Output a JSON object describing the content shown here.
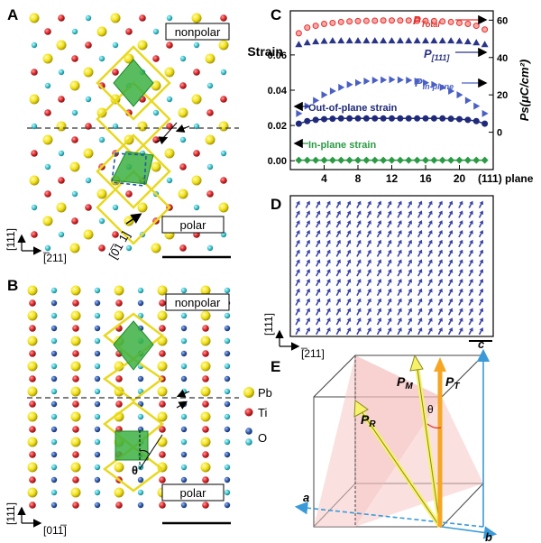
{
  "panels": {
    "A": {
      "letter": "A",
      "nonpolar": "nonpolar",
      "polar": "polar",
      "axis_v": "[111]",
      "axis_h": "[̅211]",
      "direction": "[0̅1 1]"
    },
    "B": {
      "letter": "B",
      "nonpolar": "nonpolar",
      "polar": "polar",
      "axis_v": "[111]",
      "axis_h": "[011̅]",
      "theta": "θ"
    },
    "C": {
      "letter": "C",
      "ylabel_left": "Strain",
      "ylabel_right": "Ps(μC/cm²)",
      "xlabel_suffix": "(111) plane",
      "labels": {
        "ptotal": "P",
        "ptotal_sub": "Total",
        "p111": "P",
        "p111_sub": "[111]",
        "pinplane": "P",
        "pinplane_sub": "In-plane",
        "outofplane": "Out-of-plane strain",
        "inplane": "In-plane strain"
      }
    },
    "D": {
      "letter": "D",
      "axis_v": "[111]",
      "axis_h": "[̅211]"
    },
    "E": {
      "letter": "E",
      "a": "a",
      "b": "b",
      "c": "c",
      "PM": "P",
      "PM_sub": "M",
      "PT": "P",
      "PT_sub": "T",
      "PR": "P",
      "PR_sub": "R",
      "theta": "θ"
    }
  },
  "legend": {
    "pb": "Pb",
    "ti": "Ti",
    "o": "O"
  },
  "colors": {
    "pb": "#f2e21a",
    "ti": "#d8282a",
    "o_blue": "#2f5aa8",
    "o_cyan": "#3cc3cf",
    "octahedron": "#3cb043",
    "ptotal": "#e3302c",
    "p111": "#2b3588",
    "pinplane": "#4a5fc4",
    "outofplane": "#1f2a7a",
    "inplane": "#2a9a44",
    "arrow_d": "#3a44a8"
  },
  "chart_data": {
    "type": "scatter",
    "x": [
      1,
      2,
      3,
      4,
      5,
      6,
      7,
      8,
      9,
      10,
      11,
      12,
      13,
      14,
      15,
      16,
      17,
      18,
      19,
      20,
      21,
      22,
      23
    ],
    "x_ticks": [
      4,
      8,
      12,
      16,
      20
    ],
    "xlim": [
      0,
      24
    ],
    "y_left_lim": [
      -0.005,
      0.085
    ],
    "y_left_ticks": [
      0.0,
      0.02,
      0.04,
      0.06
    ],
    "y_right_lim": [
      -20,
      65
    ],
    "y_right_ticks": [
      0,
      20,
      40,
      60
    ],
    "series": [
      {
        "name": "P Total",
        "axis": "right",
        "marker": "circle",
        "values": [
          53,
          56,
          57,
          58,
          58.5,
          59,
          59.3,
          59.5,
          59.6,
          59.7,
          59.8,
          59.8,
          59.8,
          59.8,
          59.7,
          59.6,
          59.5,
          59.3,
          59,
          58.5,
          58,
          57,
          55
        ]
      },
      {
        "name": "P [111]",
        "axis": "right",
        "marker": "triangle-up",
        "values": [
          47,
          48,
          48.5,
          48.8,
          49,
          49,
          49,
          49,
          49,
          49,
          49,
          49,
          49,
          49,
          49,
          49,
          49,
          49,
          49,
          48.8,
          48.5,
          48,
          47
        ]
      },
      {
        "name": "P In-plane",
        "axis": "right",
        "marker": "triangle-right",
        "values": [
          10,
          14,
          17,
          20,
          22,
          24,
          25.5,
          26.5,
          27.3,
          27.8,
          28,
          28.2,
          28,
          27.8,
          27.3,
          26.5,
          25.5,
          24,
          22,
          20,
          17,
          14,
          10
        ]
      },
      {
        "name": "Out-of-plane strain",
        "axis": "left",
        "marker": "circle",
        "values": [
          0.021,
          0.0225,
          0.0232,
          0.0236,
          0.0238,
          0.024,
          0.024,
          0.024,
          0.024,
          0.024,
          0.024,
          0.024,
          0.024,
          0.024,
          0.024,
          0.024,
          0.024,
          0.024,
          0.0238,
          0.0236,
          0.0232,
          0.0225,
          0.021
        ]
      },
      {
        "name": "In-plane strain",
        "axis": "left",
        "marker": "diamond",
        "values": [
          0.0003,
          0.0003,
          0.0003,
          0.0003,
          0.0003,
          0.0003,
          0.0003,
          0.0003,
          0.0003,
          0.0003,
          0.0003,
          0.0003,
          0.0003,
          0.0003,
          0.0003,
          0.0003,
          0.0003,
          0.0003,
          0.0003,
          0.0003,
          0.0003,
          0.0003,
          0.0003
        ]
      }
    ]
  }
}
